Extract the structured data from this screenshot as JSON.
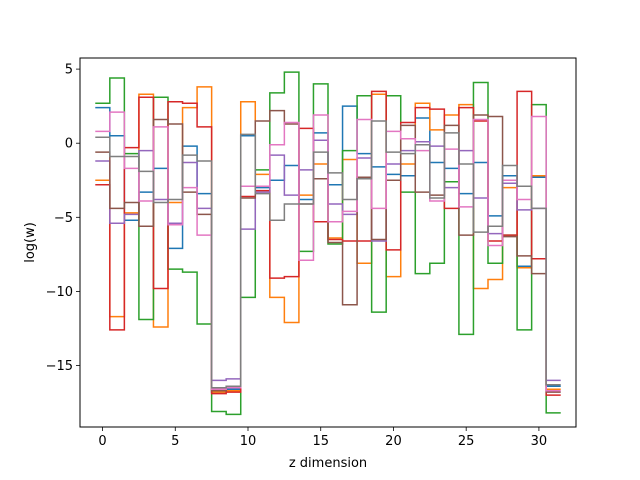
{
  "chart_data": {
    "type": "line",
    "drawstyle": "steps-mid",
    "xlabel": "z dimension",
    "ylabel": "log(w)",
    "xlim": [
      -1.55,
      32.55
    ],
    "ylim": [
      -19.15,
      5.75
    ],
    "x_ticks": [
      0,
      5,
      10,
      15,
      20,
      25,
      30
    ],
    "y_ticks": [
      5,
      0,
      -5,
      -10,
      -15
    ],
    "grid": false,
    "legend": "none",
    "x": [
      0,
      1,
      2,
      3,
      4,
      5,
      6,
      7,
      8,
      9,
      10,
      11,
      12,
      13,
      14,
      15,
      16,
      17,
      18,
      19,
      20,
      21,
      22,
      23,
      24,
      25,
      26,
      27,
      28,
      29,
      30,
      31
    ],
    "series": [
      {
        "color": "#1f77b4",
        "values": [
          2.4,
          0.5,
          -5.2,
          -3.3,
          -1.7,
          -7.1,
          -0.2,
          -3.4,
          -16.8,
          -16.6,
          0.5,
          -3.0,
          -2.5,
          -1.5,
          -3.8,
          0.7,
          -2.8,
          2.5,
          -0.7,
          -1.6,
          -2.1,
          -2.2,
          1.7,
          -1.3,
          -1.7,
          -3.4,
          -1.3,
          -4.9,
          -2.2,
          -8.3,
          -2.3,
          -16.4
        ]
      },
      {
        "color": "#ff7f0e",
        "values": [
          -2.5,
          -11.7,
          -4.7,
          3.3,
          -12.4,
          -4.0,
          2.4,
          3.8,
          -16.8,
          -16.7,
          2.8,
          -2.1,
          -10.4,
          -12.1,
          -3.5,
          -1.4,
          -6.4,
          -1.1,
          -8.1,
          3.3,
          -9.0,
          -1.4,
          2.7,
          0.9,
          1.9,
          2.6,
          -9.8,
          -9.2,
          -3.0,
          -8.4,
          -2.2,
          -16.6
        ]
      },
      {
        "color": "#2ca02c",
        "values": [
          2.7,
          4.4,
          -0.7,
          -11.9,
          3.1,
          -8.5,
          -8.7,
          -12.2,
          -18.1,
          -18.3,
          -10.4,
          -1.8,
          3.4,
          4.8,
          -7.3,
          4.0,
          -6.8,
          -0.5,
          3.2,
          -11.4,
          3.2,
          -3.3,
          -8.8,
          -8.1,
          -2.6,
          -12.9,
          4.1,
          -8.1,
          -6.2,
          -12.6,
          2.6,
          -18.2
        ]
      },
      {
        "color": "#d62728",
        "values": [
          -2.8,
          -12.6,
          -0.3,
          3.1,
          -9.8,
          2.8,
          2.7,
          1.1,
          -16.9,
          -16.8,
          -3.6,
          -3.2,
          -9.1,
          -9.0,
          1.0,
          -5.3,
          -6.5,
          -6.6,
          -6.6,
          3.5,
          -7.2,
          1.4,
          2.4,
          2.3,
          -4.4,
          2.4,
          1.5,
          -6.6,
          -6.2,
          3.5,
          -7.8,
          -17.0
        ]
      },
      {
        "color": "#9467bd",
        "values": [
          -1.2,
          -5.4,
          -4.8,
          -0.5,
          -3.8,
          -5.4,
          -1.3,
          -4.4,
          -16.0,
          -15.9,
          -5.8,
          -3.3,
          -0.8,
          -3.5,
          -1.8,
          0.2,
          -4.1,
          -4.8,
          -1.0,
          -6.6,
          -1.4,
          -0.5,
          0.1,
          -0.2,
          -3.0,
          -0.5,
          -3.7,
          -6.1,
          -2.7,
          -4.5,
          -4.4,
          -16.0
        ]
      },
      {
        "color": "#8c564b",
        "values": [
          -0.6,
          -4.4,
          -4.0,
          -5.6,
          1.6,
          1.3,
          -3.3,
          -4.8,
          -16.7,
          -16.5,
          -3.7,
          1.5,
          2.2,
          1.3,
          -4.1,
          -2.4,
          -6.7,
          -10.9,
          -2.3,
          -6.5,
          -2.5,
          1.2,
          -3.3,
          -3.5,
          1.2,
          -6.2,
          1.9,
          1.8,
          -6.3,
          -7.6,
          -8.8,
          -16.8
        ]
      },
      {
        "color": "#e377c2",
        "values": [
          0.8,
          2.1,
          -1.7,
          -3.9,
          1.1,
          -5.5,
          -3.0,
          -6.2,
          -16.6,
          -16.5,
          -2.9,
          -2.9,
          -0.1,
          1.4,
          -7.9,
          1.9,
          -5.3,
          -4.6,
          1.6,
          -4.4,
          0.8,
          0.3,
          -0.5,
          -3.9,
          -0.4,
          -4.3,
          1.6,
          -6.9,
          -2.5,
          -3.8,
          1.8,
          -16.7
        ]
      },
      {
        "color": "#7f7f7f",
        "values": [
          0.4,
          -0.9,
          -0.9,
          -1.9,
          -4.0,
          -3.8,
          -0.8,
          -1.2,
          -16.5,
          -16.4,
          0.6,
          -3.4,
          -5.2,
          -4.1,
          -4.1,
          -0.6,
          -2.0,
          -3.8,
          -2.4,
          1.5,
          -0.6,
          -0.7,
          -0.1,
          -3.7,
          0.7,
          -1.4,
          -6.0,
          -5.6,
          -1.5,
          -2.9,
          -4.4,
          -16.3
        ]
      }
    ]
  }
}
